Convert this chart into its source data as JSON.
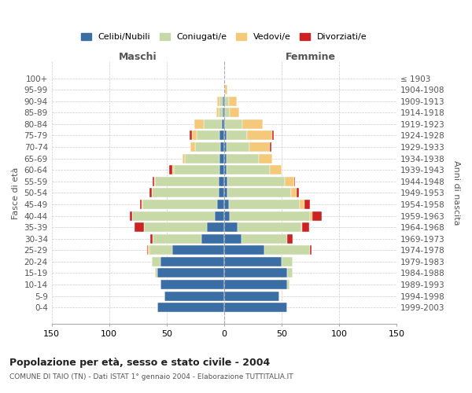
{
  "age_groups": [
    "0-4",
    "5-9",
    "10-14",
    "15-19",
    "20-24",
    "25-29",
    "30-34",
    "35-39",
    "40-44",
    "45-49",
    "50-54",
    "55-59",
    "60-64",
    "65-69",
    "70-74",
    "75-79",
    "80-84",
    "85-89",
    "90-94",
    "95-99",
    "100+"
  ],
  "birth_years": [
    "1999-2003",
    "1994-1998",
    "1989-1993",
    "1984-1988",
    "1979-1983",
    "1974-1978",
    "1969-1973",
    "1964-1968",
    "1959-1963",
    "1954-1958",
    "1949-1953",
    "1944-1948",
    "1939-1943",
    "1934-1938",
    "1929-1933",
    "1924-1928",
    "1919-1923",
    "1914-1918",
    "1909-1913",
    "1904-1908",
    "≤ 1903"
  ],
  "male_celibe": [
    58,
    52,
    55,
    58,
    55,
    45,
    20,
    15,
    8,
    6,
    5,
    5,
    4,
    4,
    3,
    4,
    2,
    1,
    1,
    0,
    0
  ],
  "male_coniugato": [
    0,
    0,
    0,
    2,
    8,
    20,
    42,
    55,
    72,
    65,
    58,
    55,
    40,
    30,
    22,
    20,
    16,
    4,
    3,
    0,
    0
  ],
  "male_vedovo": [
    0,
    0,
    0,
    0,
    0,
    1,
    0,
    0,
    0,
    1,
    0,
    1,
    1,
    2,
    4,
    4,
    8,
    2,
    2,
    0,
    0
  ],
  "male_divorziato": [
    0,
    0,
    0,
    0,
    0,
    1,
    2,
    8,
    2,
    1,
    2,
    1,
    3,
    0,
    0,
    2,
    0,
    0,
    0,
    0,
    0
  ],
  "female_celibe": [
    55,
    48,
    55,
    55,
    50,
    35,
    15,
    12,
    5,
    4,
    3,
    3,
    2,
    2,
    2,
    2,
    1,
    1,
    1,
    0,
    0
  ],
  "female_coniugato": [
    0,
    0,
    2,
    5,
    10,
    40,
    40,
    55,
    70,
    62,
    55,
    50,
    38,
    28,
    20,
    18,
    15,
    4,
    3,
    1,
    0
  ],
  "female_vedovo": [
    0,
    0,
    0,
    0,
    0,
    0,
    0,
    1,
    2,
    4,
    5,
    8,
    10,
    12,
    18,
    22,
    18,
    8,
    7,
    2,
    0
  ],
  "female_divorziato": [
    0,
    0,
    0,
    0,
    0,
    1,
    5,
    6,
    8,
    5,
    2,
    1,
    0,
    0,
    1,
    1,
    0,
    0,
    0,
    0,
    0
  ],
  "color_celibe": "#3a6ea5",
  "color_coniugato": "#c8d9a8",
  "color_vedovo": "#f5c97a",
  "color_divorziato": "#cc2222",
  "title": "Popolazione per età, sesso e stato civile - 2004",
  "subtitle": "COMUNE DI TAIO (TN) - Dati ISTAT 1° gennaio 2004 - Elaborazione TUTTITALIA.IT",
  "xlabel_left": "Maschi",
  "xlabel_right": "Femmine",
  "ylabel_left": "Fasce di età",
  "ylabel_right": "Anni di nascita",
  "xlim": 150,
  "background_color": "#ffffff",
  "grid_color": "#cccccc"
}
